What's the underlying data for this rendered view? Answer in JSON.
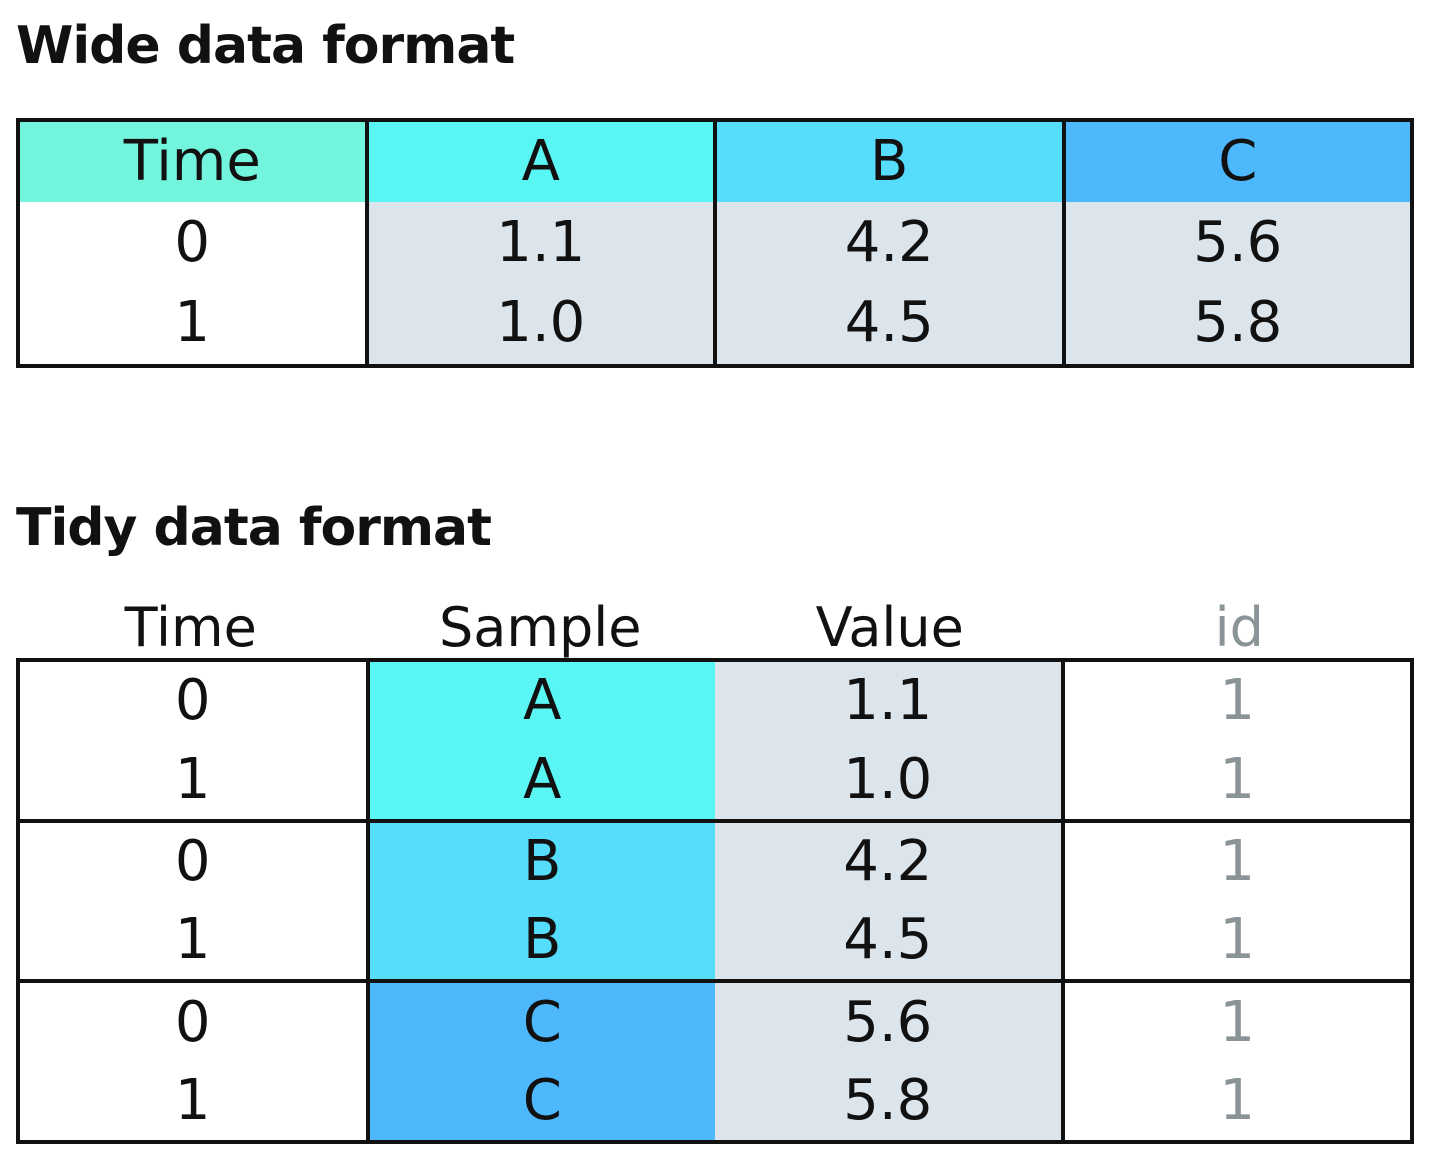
{
  "wide": {
    "title": "Wide data format",
    "columns": [
      {
        "header": "Time",
        "header_color": "#72f5dc",
        "values": [
          "0",
          "1"
        ],
        "body": "white"
      },
      {
        "header": "A",
        "header_color": "#5af6f4",
        "values": [
          "1.1",
          "1.0"
        ],
        "body": "gray"
      },
      {
        "header": "B",
        "header_color": "#55ddfb",
        "values": [
          "4.2",
          "4.5"
        ],
        "body": "gray"
      },
      {
        "header": "C",
        "header_color": "#4db8fb",
        "values": [
          "5.6",
          "5.8"
        ],
        "body": "gray"
      }
    ]
  },
  "tidy": {
    "title": "Tidy data format",
    "headers": [
      "Time",
      "Sample",
      "Value",
      "id"
    ],
    "groups": [
      {
        "sample_color": "#5af6f4",
        "rows": [
          {
            "time": "0",
            "sample": "A",
            "value": "1.1",
            "id": "1"
          },
          {
            "time": "1",
            "sample": "A",
            "value": "1.0",
            "id": "1"
          }
        ]
      },
      {
        "sample_color": "#55ddfb",
        "rows": [
          {
            "time": "0",
            "sample": "B",
            "value": "4.2",
            "id": "1"
          },
          {
            "time": "1",
            "sample": "B",
            "value": "4.5",
            "id": "1"
          }
        ]
      },
      {
        "sample_color": "#4db8fb",
        "rows": [
          {
            "time": "0",
            "sample": "C",
            "value": "5.6",
            "id": "1"
          },
          {
            "time": "1",
            "sample": "C",
            "value": "5.8",
            "id": "1"
          }
        ]
      }
    ]
  },
  "colors": {
    "value_gray": "#dde5ec",
    "id_text": "#8a9396",
    "border": "#111111"
  }
}
